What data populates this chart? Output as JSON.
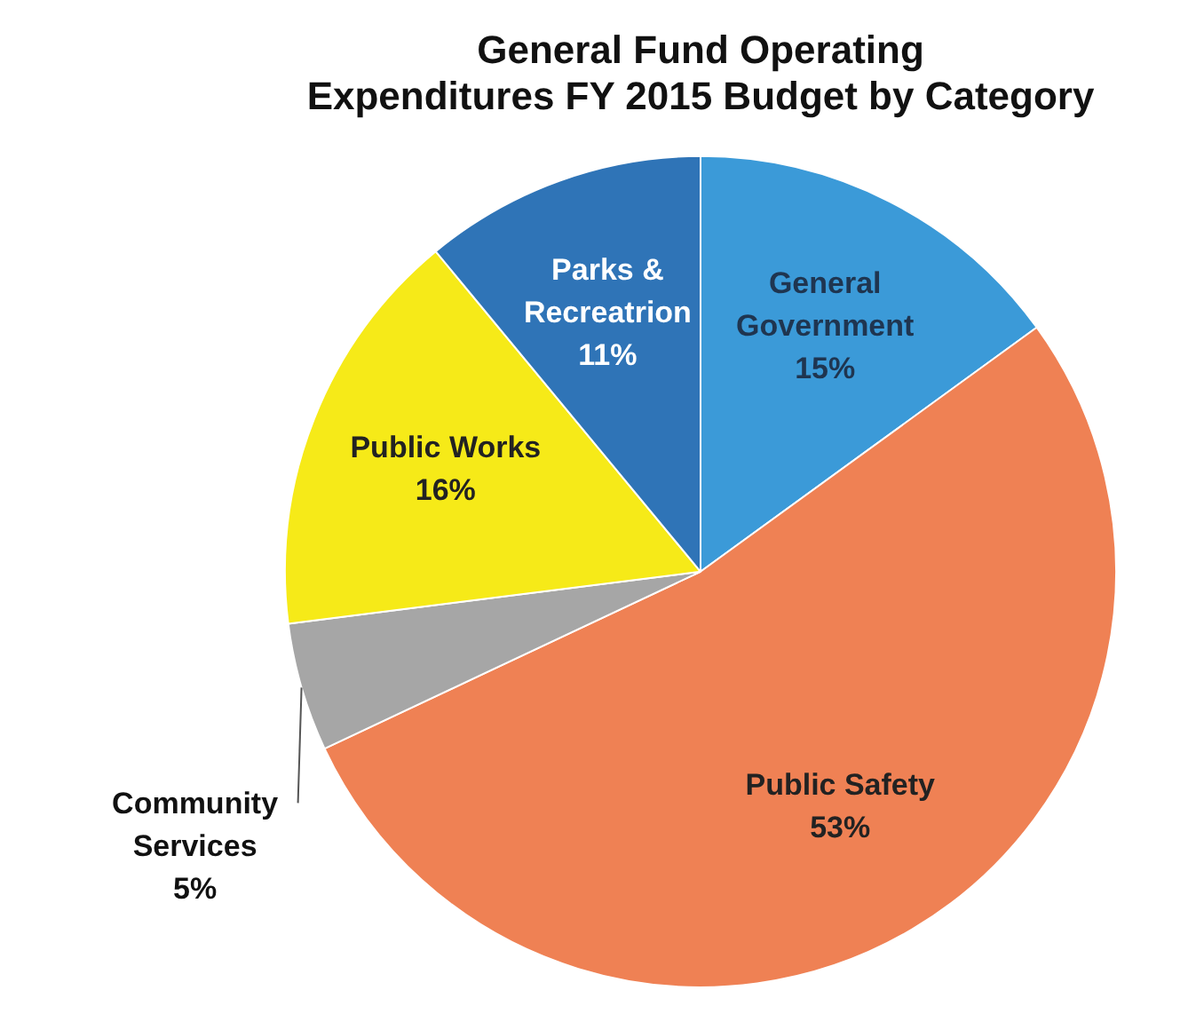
{
  "chart_data": {
    "type": "pie",
    "title": "General Fund Operating\nExpenditures FY 2015 Budget by Category",
    "categories": [
      "General Government",
      "Public Safety",
      "Community Services",
      "Public Works",
      "Parks & Recreatrion"
    ],
    "values": [
      15,
      53,
      5,
      16,
      11
    ],
    "colors": [
      "#3b9ad8",
      "#ef8154",
      "#a6a6a6",
      "#f6ea18",
      "#2f74b7"
    ],
    "value_labels": [
      "15%",
      "53%",
      "5%",
      "16%",
      "11%"
    ],
    "legend": false
  }
}
